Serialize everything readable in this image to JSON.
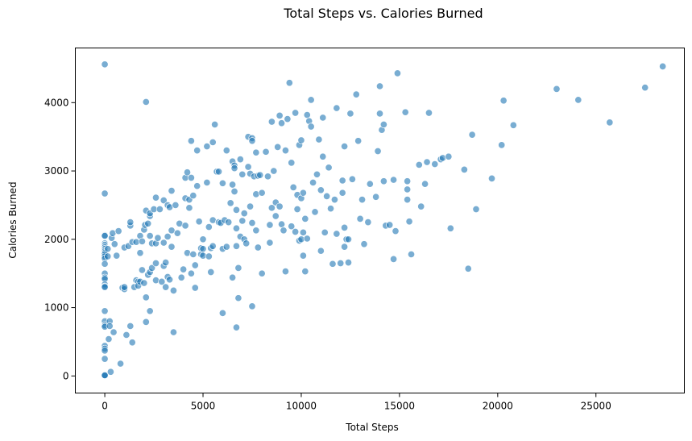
{
  "chart_data": {
    "type": "scatter",
    "title": "Total Steps vs. Calories Burned",
    "xlabel": "Total Steps",
    "ylabel": "Calories Burned",
    "xlim": [
      -1500,
      29500
    ],
    "ylim": [
      -250,
      4800
    ],
    "xticks": [
      0,
      5000,
      10000,
      15000,
      20000,
      25000
    ],
    "yticks": [
      0,
      1000,
      2000,
      3000,
      4000
    ],
    "grid": false,
    "marker_color": "#1f77b4",
    "marker_edge_color": "#ffffff",
    "marker_alpha": 0.6,
    "series": [
      {
        "name": "Calories Burned",
        "points": [
          [
            0,
            4560
          ],
          [
            0,
            2670
          ],
          [
            0,
            2060
          ],
          [
            0,
            2050
          ],
          [
            0,
            1940
          ],
          [
            0,
            1920
          ],
          [
            0,
            1900
          ],
          [
            0,
            1880
          ],
          [
            0,
            1860
          ],
          [
            0,
            1840
          ],
          [
            0,
            1820
          ],
          [
            0,
            1800
          ],
          [
            0,
            1780
          ],
          [
            0,
            1750
          ],
          [
            0,
            1720
          ],
          [
            0,
            1640
          ],
          [
            0,
            1500
          ],
          [
            0,
            1440
          ],
          [
            0,
            1420
          ],
          [
            0,
            1340
          ],
          [
            0,
            1310
          ],
          [
            0,
            1300
          ],
          [
            0,
            950
          ],
          [
            0,
            800
          ],
          [
            0,
            740
          ],
          [
            0,
            720
          ],
          [
            0,
            440
          ],
          [
            0,
            400
          ],
          [
            0,
            370
          ],
          [
            0,
            250
          ],
          [
            0,
            0
          ],
          [
            0,
            5
          ],
          [
            0,
            10
          ],
          [
            150,
            1860
          ],
          [
            150,
            1750
          ],
          [
            200,
            540
          ],
          [
            250,
            800
          ],
          [
            250,
            730
          ],
          [
            300,
            60
          ],
          [
            350,
            2020
          ],
          [
            400,
            2090
          ],
          [
            450,
            640
          ],
          [
            500,
            1930
          ],
          [
            600,
            1760
          ],
          [
            700,
            2120
          ],
          [
            800,
            180
          ],
          [
            900,
            1290
          ],
          [
            1000,
            1270
          ],
          [
            1000,
            1880
          ],
          [
            1000,
            1300
          ],
          [
            1100,
            600
          ],
          [
            1200,
            1900
          ],
          [
            1300,
            2200
          ],
          [
            1300,
            2250
          ],
          [
            1300,
            730
          ],
          [
            1400,
            490
          ],
          [
            1400,
            1960
          ],
          [
            1500,
            1300
          ],
          [
            1600,
            1960
          ],
          [
            1600,
            1400
          ],
          [
            1700,
            1380
          ],
          [
            1700,
            1320
          ],
          [
            1800,
            1800
          ],
          [
            1800,
            2050
          ],
          [
            1800,
            1380
          ],
          [
            1900,
            1550
          ],
          [
            1900,
            1970
          ],
          [
            2000,
            2140
          ],
          [
            2000,
            1360
          ],
          [
            2050,
            2210
          ],
          [
            2100,
            2420
          ],
          [
            2100,
            4010
          ],
          [
            2100,
            1150
          ],
          [
            2100,
            790
          ],
          [
            2200,
            2230
          ],
          [
            2200,
            1480
          ],
          [
            2300,
            2340
          ],
          [
            2300,
            2380
          ],
          [
            2300,
            2050
          ],
          [
            2300,
            1520
          ],
          [
            2300,
            950
          ],
          [
            2400,
            1940
          ],
          [
            2400,
            1580
          ],
          [
            2500,
            2440
          ],
          [
            2600,
            2610
          ],
          [
            2600,
            1940
          ],
          [
            2600,
            1650
          ],
          [
            2600,
            1400
          ],
          [
            2700,
            2020
          ],
          [
            2800,
            2440
          ],
          [
            2900,
            1380
          ],
          [
            3000,
            2570
          ],
          [
            3000,
            1950
          ],
          [
            3000,
            1610
          ],
          [
            3100,
            1660
          ],
          [
            3100,
            1300
          ],
          [
            3200,
            2500
          ],
          [
            3200,
            2040
          ],
          [
            3200,
            1450
          ],
          [
            3300,
            2470
          ],
          [
            3300,
            1410
          ],
          [
            3400,
            2710
          ],
          [
            3400,
            2130
          ],
          [
            3400,
            1890
          ],
          [
            3500,
            1250
          ],
          [
            3500,
            640
          ],
          [
            3600,
            2500
          ],
          [
            3700,
            2090
          ],
          [
            3800,
            2230
          ],
          [
            3900,
            1440
          ],
          [
            4000,
            1560
          ],
          [
            4100,
            2900
          ],
          [
            4100,
            2600
          ],
          [
            4100,
            2200
          ],
          [
            4200,
            2980
          ],
          [
            4200,
            1800
          ],
          [
            4300,
            2580
          ],
          [
            4300,
            2460
          ],
          [
            4400,
            3440
          ],
          [
            4400,
            2900
          ],
          [
            4400,
            1500
          ],
          [
            4500,
            2640
          ],
          [
            4500,
            1780
          ],
          [
            4600,
            1620
          ],
          [
            4600,
            1290
          ],
          [
            4700,
            2780
          ],
          [
            4700,
            3300
          ],
          [
            4800,
            2260
          ],
          [
            4900,
            1780
          ],
          [
            4900,
            1870
          ],
          [
            5000,
            1860
          ],
          [
            5000,
            2000
          ],
          [
            5000,
            1760
          ],
          [
            5200,
            2830
          ],
          [
            5200,
            3360
          ],
          [
            5300,
            1750
          ],
          [
            5300,
            2180
          ],
          [
            5400,
            1870
          ],
          [
            5400,
            1520
          ],
          [
            5500,
            3420
          ],
          [
            5500,
            2280
          ],
          [
            5500,
            1900
          ],
          [
            5600,
            3680
          ],
          [
            5700,
            2990
          ],
          [
            5800,
            2990
          ],
          [
            5800,
            2250
          ],
          [
            5900,
            2240
          ],
          [
            6000,
            2820
          ],
          [
            6000,
            1860
          ],
          [
            6000,
            920
          ],
          [
            6100,
            2280
          ],
          [
            6200,
            3300
          ],
          [
            6200,
            1890
          ],
          [
            6300,
            2250
          ],
          [
            6400,
            2530
          ],
          [
            6500,
            3140
          ],
          [
            6500,
            2800
          ],
          [
            6500,
            1440
          ],
          [
            6600,
            3080
          ],
          [
            6600,
            3040
          ],
          [
            6600,
            2700
          ],
          [
            6700,
            2430
          ],
          [
            6700,
            2160
          ],
          [
            6700,
            1900
          ],
          [
            6700,
            710
          ],
          [
            6800,
            1580
          ],
          [
            6800,
            1140
          ],
          [
            6900,
            3170
          ],
          [
            6900,
            2040
          ],
          [
            7000,
            2270
          ],
          [
            7000,
            2950
          ],
          [
            7100,
            2000
          ],
          [
            7100,
            2380
          ],
          [
            7200,
            1940
          ],
          [
            7300,
            3500
          ],
          [
            7300,
            3060
          ],
          [
            7400,
            2960
          ],
          [
            7400,
            2480
          ],
          [
            7500,
            3480
          ],
          [
            7500,
            3440
          ],
          [
            7500,
            2240
          ],
          [
            7500,
            1020
          ],
          [
            7600,
            2920
          ],
          [
            7700,
            3270
          ],
          [
            7700,
            2660
          ],
          [
            7700,
            2130
          ],
          [
            7800,
            2930
          ],
          [
            7800,
            1880
          ],
          [
            7900,
            2940
          ],
          [
            8000,
            2680
          ],
          [
            8000,
            1500
          ],
          [
            8200,
            3280
          ],
          [
            8300,
            2920
          ],
          [
            8400,
            2210
          ],
          [
            8400,
            1950
          ],
          [
            8500,
            3720
          ],
          [
            8500,
            2460
          ],
          [
            8600,
            3000
          ],
          [
            8700,
            2540
          ],
          [
            8700,
            2340
          ],
          [
            8800,
            3350
          ],
          [
            8900,
            3810
          ],
          [
            8900,
            2480
          ],
          [
            9000,
            3700
          ],
          [
            9000,
            2220
          ],
          [
            9100,
            2130
          ],
          [
            9200,
            3300
          ],
          [
            9200,
            1530
          ],
          [
            9300,
            3760
          ],
          [
            9400,
            4290
          ],
          [
            9500,
            3120
          ],
          [
            9500,
            2190
          ],
          [
            9600,
            2760
          ],
          [
            9700,
            3850
          ],
          [
            9700,
            2110
          ],
          [
            9800,
            2650
          ],
          [
            9800,
            2440
          ],
          [
            9900,
            3380
          ],
          [
            9900,
            1980
          ],
          [
            10000,
            3450
          ],
          [
            10000,
            2600
          ],
          [
            10000,
            2000
          ],
          [
            10100,
            2680
          ],
          [
            10100,
            2100
          ],
          [
            10100,
            1760
          ],
          [
            10200,
            2300
          ],
          [
            10200,
            1530
          ],
          [
            10300,
            3820
          ],
          [
            10300,
            2010
          ],
          [
            10400,
            3730
          ],
          [
            10500,
            4040
          ],
          [
            10500,
            3650
          ],
          [
            10600,
            2830
          ],
          [
            10700,
            2400
          ],
          [
            10800,
            2950
          ],
          [
            10900,
            3460
          ],
          [
            11000,
            2720
          ],
          [
            11000,
            1830
          ],
          [
            11100,
            3780
          ],
          [
            11100,
            3210
          ],
          [
            11200,
            2100
          ],
          [
            11300,
            2630
          ],
          [
            11400,
            3050
          ],
          [
            11500,
            2450
          ],
          [
            11600,
            1640
          ],
          [
            11700,
            2580
          ],
          [
            11800,
            3920
          ],
          [
            11800,
            2080
          ],
          [
            12000,
            1650
          ],
          [
            12100,
            2860
          ],
          [
            12100,
            2680
          ],
          [
            12200,
            3360
          ],
          [
            12200,
            2170
          ],
          [
            12200,
            1890
          ],
          [
            12300,
            2000
          ],
          [
            12400,
            1660
          ],
          [
            12400,
            2000
          ],
          [
            12500,
            3840
          ],
          [
            12600,
            2880
          ],
          [
            12800,
            4120
          ],
          [
            12900,
            3440
          ],
          [
            13000,
            2300
          ],
          [
            13100,
            2580
          ],
          [
            13200,
            1930
          ],
          [
            13400,
            2250
          ],
          [
            13500,
            2810
          ],
          [
            13800,
            2620
          ],
          [
            13900,
            3290
          ],
          [
            14000,
            4240
          ],
          [
            14000,
            3840
          ],
          [
            14100,
            3600
          ],
          [
            14200,
            3680
          ],
          [
            14200,
            2850
          ],
          [
            14300,
            2200
          ],
          [
            14500,
            2210
          ],
          [
            14700,
            2870
          ],
          [
            14700,
            1710
          ],
          [
            14800,
            2120
          ],
          [
            14900,
            4430
          ],
          [
            15300,
            3860
          ],
          [
            15400,
            2850
          ],
          [
            15400,
            2580
          ],
          [
            15400,
            2730
          ],
          [
            15500,
            2260
          ],
          [
            15600,
            1780
          ],
          [
            16000,
            3090
          ],
          [
            16100,
            2480
          ],
          [
            16300,
            2810
          ],
          [
            16400,
            3130
          ],
          [
            16500,
            3850
          ],
          [
            16800,
            3100
          ],
          [
            17100,
            3170
          ],
          [
            17200,
            3190
          ],
          [
            17500,
            3210
          ],
          [
            17600,
            2160
          ],
          [
            18300,
            3020
          ],
          [
            18500,
            1570
          ],
          [
            18700,
            3530
          ],
          [
            18900,
            2440
          ],
          [
            19700,
            2890
          ],
          [
            20200,
            3380
          ],
          [
            20300,
            4030
          ],
          [
            20800,
            3670
          ],
          [
            23000,
            4200
          ],
          [
            24100,
            4040
          ],
          [
            25700,
            3710
          ],
          [
            27500,
            4220
          ],
          [
            28400,
            4530
          ]
        ]
      }
    ]
  }
}
